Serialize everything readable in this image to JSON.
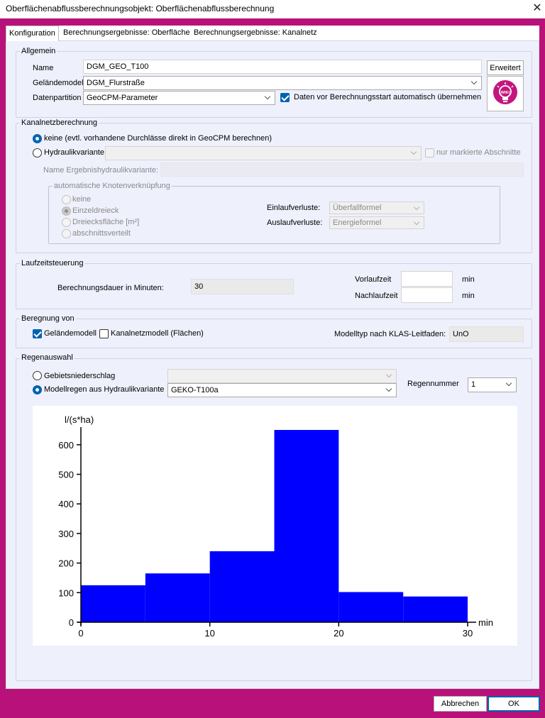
{
  "window": {
    "title": "Oberflächenabflussberechnungsobjekt: Oberflächenabflussberechnung",
    "close_glyph": "✕"
  },
  "tabs": [
    {
      "label": "Konfiguration",
      "active": true
    },
    {
      "label": "Berechnungsergebnisse: Oberfläche",
      "active": false
    },
    {
      "label": "Berechnungsergebnisse: Kanalnetz",
      "active": false
    }
  ],
  "allgemein": {
    "legend": "Allgemein",
    "name_label": "Name",
    "name_value": "DGM_GEO_T100",
    "gelaendemodell_label": "Geländemodell",
    "gelaendemodell_value": "DGM_Flurstraße",
    "datenpartition_label": "Datenpartition",
    "datenpartition_value": "GeoCPM-Parameter",
    "auto_uebernehmen_label": "Daten vor Berechnungsstart automatisch übernehmen",
    "auto_uebernehmen_checked": true,
    "erweitert_label": "Erweitert",
    "wiki_label": "WIKI",
    "wiki_icon": "lightbulb-icon"
  },
  "kanalnetz": {
    "legend": "Kanalnetzberechnung",
    "option_keine": "keine (evtl. vorhandene Durchlässe direkt in GeoCPM berechnen)",
    "option_hydraulik": "Hydraulikvariante",
    "selected": "keine",
    "hydraulik_value": "",
    "nur_markierte_label": "nur markierte Abschnitte",
    "name_ergebnis_label": "Name Ergebnishydraulikvariante:",
    "name_ergebnis_value": "",
    "knoten": {
      "legend": "automatische Knotenverknüpfung",
      "options": [
        "keine",
        "Einzeldreieck",
        "Dreiecksfläche [m²]",
        "abschnittsverteilt"
      ],
      "selected": "Einzeldreieck",
      "einlauf_label": "Einlaufverluste:",
      "einlauf_value": "Überfallformel",
      "auslauf_label": "Auslaufverluste:",
      "auslauf_value": "Energieformel"
    }
  },
  "laufzeit": {
    "legend": "Laufzeitsteuerung",
    "dauer_label": "Berechnungsdauer in Minuten:",
    "dauer_value": "30",
    "vorlauf_label": "Vorlaufzeit",
    "vorlauf_value": "",
    "nachlauf_label": "Nachlaufzeit",
    "nachlauf_value": "",
    "unit": "min"
  },
  "beregnung": {
    "legend": "Beregnung von",
    "gelaendemodell_label": "Geländemodell",
    "gelaendemodell_checked": true,
    "kanalnetz_label": "Kanalnetzmodell (Flächen)",
    "kanalnetz_checked": false,
    "modelltyp_label": "Modelltyp nach KLAS-Leitfaden:",
    "modelltyp_value": "UnO"
  },
  "regen": {
    "legend": "Regenauswahl",
    "option_gebiet": "Gebietsniederschlag",
    "option_modell": "Modellregen aus Hydraulikvariante",
    "selected": "Modellregen aus Hydraulikvariante",
    "gebiet_value": "",
    "modell_value": "GEKO-T100a",
    "regennummer_label": "Regennummer",
    "regennummer_value": "1"
  },
  "chart_data": {
    "type": "bar",
    "ylabel": "l/(s*ha)",
    "xlabel": "min",
    "xlim": [
      0,
      30
    ],
    "ylim": [
      0,
      650
    ],
    "xticks": [
      0,
      10,
      20,
      30
    ],
    "yticks": [
      0,
      100,
      200,
      300,
      400,
      500,
      600
    ],
    "bins": [
      {
        "x0": 0,
        "x1": 5,
        "value": 125
      },
      {
        "x0": 5,
        "x1": 10,
        "value": 165
      },
      {
        "x0": 10,
        "x1": 15,
        "value": 240
      },
      {
        "x0": 15,
        "x1": 20,
        "value": 650
      },
      {
        "x0": 20,
        "x1": 25,
        "value": 102
      },
      {
        "x0": 25,
        "x1": 30,
        "value": 87
      }
    ],
    "bar_color": "#0000ff",
    "grid": false
  },
  "footer": {
    "cancel_label": "Abbrechen",
    "ok_label": "OK"
  },
  "colors": {
    "frame": "#b8127a",
    "panel": "#eef0fc",
    "accent": "#0063b1"
  }
}
